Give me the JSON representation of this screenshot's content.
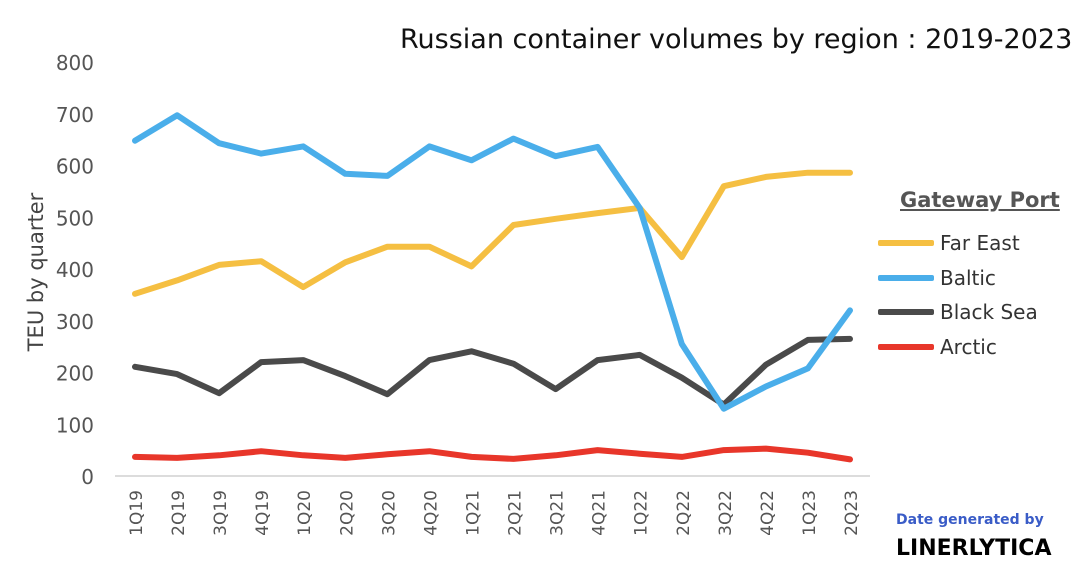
{
  "chart_data": {
    "type": "line",
    "title": "Russian container volumes by region : 2019-2023",
    "xlabel": "",
    "ylabel": "TEU by quarter",
    "ylim": [
      0,
      800
    ],
    "yticks": [
      "0",
      "100",
      "200",
      "300",
      "400",
      "500",
      "600",
      "700",
      "800"
    ],
    "grid": false,
    "legend_title": "Gateway Port",
    "legend_position": "right",
    "categories": [
      "1Q19",
      "2Q19",
      "3Q19",
      "4Q19",
      "1Q20",
      "2Q20",
      "3Q20",
      "4Q20",
      "1Q21",
      "2Q21",
      "3Q21",
      "4Q21",
      "1Q22",
      "2Q22",
      "3Q22",
      "4Q22",
      "1Q23",
      "2Q23"
    ],
    "series": [
      {
        "name": "Far East",
        "color": "#f5bf42",
        "values": [
          352,
          378,
          408,
          415,
          365,
          413,
          443,
          443,
          405,
          485,
          497,
          508,
          518,
          423,
          560,
          578,
          586,
          586
        ]
      },
      {
        "name": "Baltic",
        "color": "#4aaeea",
        "values": [
          648,
          697,
          643,
          623,
          637,
          584,
          580,
          637,
          610,
          652,
          618,
          636,
          518,
          255,
          130,
          173,
          208,
          320
        ]
      },
      {
        "name": "Black Sea",
        "color": "#4a4a4a",
        "values": [
          211,
          197,
          160,
          220,
          224,
          193,
          158,
          224,
          241,
          217,
          168,
          224,
          234,
          190,
          138,
          215,
          263,
          265
        ]
      },
      {
        "name": "Arctic",
        "color": "#e8362a",
        "values": [
          37,
          35,
          40,
          48,
          40,
          35,
          42,
          48,
          37,
          33,
          40,
          50,
          43,
          37,
          50,
          53,
          45,
          32
        ]
      }
    ]
  },
  "credit": {
    "line1": "Date generated by",
    "line2": "LINERLYTICA"
  }
}
